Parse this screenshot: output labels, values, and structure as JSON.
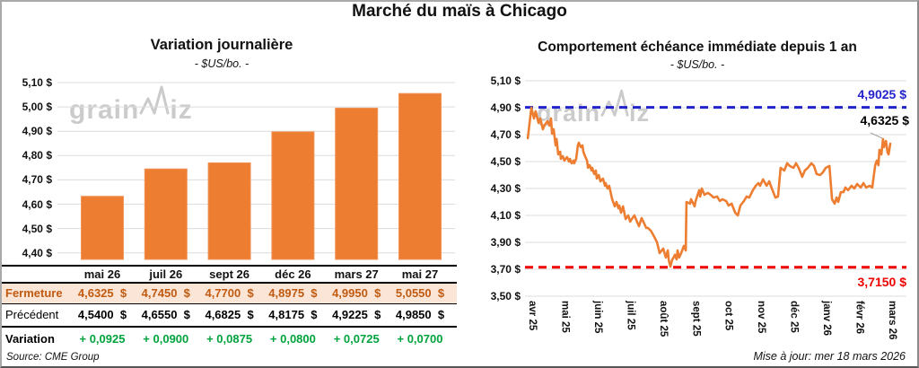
{
  "page": {
    "title": "Marché du maïs à Chicago"
  },
  "colors": {
    "orange": "#ED7D31",
    "orange_edge": "#F0945A",
    "blue_dash": "#2323CB",
    "red_dash": "#EE0000",
    "green": "#00A33C",
    "fermeture_text": "#C05A11",
    "fermeture_bg": "#FBE5D6",
    "grid": "#DCDCDC",
    "watermark": "#cbcbcb",
    "leader": "#a6a6a6"
  },
  "watermark": {
    "part1": "grain",
    "part2": "iz"
  },
  "left_chart": {
    "title": "Variation journalière",
    "subtitle": "- $US/bo. -"
  },
  "right_chart": {
    "title": "Comportement échéance immédiate depuis 1 an",
    "subtitle": "- $US/bo. -"
  },
  "annotations": {
    "resistance": "4,9025 $",
    "last": "4,6325 $",
    "support": "3,7150 $"
  },
  "table": {
    "columns": [
      "mai 26",
      "juil 26",
      "sept 26",
      "déc 26",
      "mars 27",
      "mai 27"
    ],
    "rows": [
      {
        "key": "fermeture",
        "label": "Fermeture",
        "values": [
          "4,6325  $",
          "4,7450  $",
          "4,7700  $",
          "4,8975  $",
          "4,9950  $",
          "5,0550  $"
        ]
      },
      {
        "key": "precedent",
        "label": "Précédent",
        "values": [
          "4,5400  $",
          "4,6550  $",
          "4,6825  $",
          "4,8175  $",
          "4,9225  $",
          "4,9850  $"
        ]
      },
      {
        "key": "variation",
        "label": "Variation",
        "values": [
          "+ 0,0925",
          "+ 0,0900",
          "+ 0,0875",
          "+ 0,0800",
          "+ 0,0725",
          "+ 0,0700"
        ]
      }
    ]
  },
  "footer": {
    "source": "Source: CME Group",
    "updated": "Mise à jour: mer 18 mars 2026"
  },
  "chart_data": [
    {
      "type": "bar",
      "title": "Variation journalière",
      "subtitle": "- $US/bo. -",
      "unit": "$US/bo.",
      "categories": [
        "mai 26",
        "juil 26",
        "sept 26",
        "déc 26",
        "mars 27",
        "mai 27"
      ],
      "values": [
        4.6325,
        4.745,
        4.77,
        4.8975,
        4.995,
        5.055
      ],
      "xlabel": "",
      "ylabel": "$US/bo.",
      "ylim": [
        4.4,
        5.1
      ],
      "ytick_step": 0.1,
      "grid": true
    },
    {
      "type": "line",
      "title": "Comportement échéance immédiate depuis 1 an",
      "subtitle": "- $US/bo. -",
      "unit": "$US/bo.",
      "x_labels": [
        "avr 25",
        "mai 25",
        "juin 25",
        "juil 25",
        "août 25",
        "sept 25",
        "oct 25",
        "nov 25",
        "déc 25",
        "janv 26",
        "févr 26",
        "mars 26"
      ],
      "ylim": [
        3.5,
        5.1
      ],
      "ytick_step": 0.2,
      "grid": true,
      "hlines": [
        {
          "value": 4.9025,
          "style": "dashed",
          "color": "#2323CB",
          "label": "4,9025 $"
        },
        {
          "value": 3.715,
          "style": "dashed",
          "color": "#EE0000",
          "label": "3,7150 $"
        }
      ],
      "last_value": 4.6325,
      "series": [
        {
          "name": "échéance immédiate",
          "color": "#ED7D31",
          "points": [
            [
              -0.08,
              4.673
            ],
            [
              0.03,
              4.9
            ],
            [
              0.11,
              4.82
            ],
            [
              0.16,
              4.873
            ],
            [
              0.25,
              4.787
            ],
            [
              0.3,
              4.82
            ],
            [
              0.38,
              4.74
            ],
            [
              0.44,
              4.773
            ],
            [
              0.52,
              4.8
            ],
            [
              0.58,
              4.767
            ],
            [
              0.63,
              4.82
            ],
            [
              0.66,
              4.707
            ],
            [
              0.71,
              4.74
            ],
            [
              0.77,
              4.62
            ],
            [
              0.8,
              4.667
            ],
            [
              0.85,
              4.553
            ],
            [
              0.91,
              4.573
            ],
            [
              0.93,
              4.52
            ],
            [
              0.99,
              4.54
            ],
            [
              1.04,
              4.507
            ],
            [
              1.12,
              4.533
            ],
            [
              1.18,
              4.5
            ],
            [
              1.21,
              4.52
            ],
            [
              1.26,
              4.487
            ],
            [
              1.32,
              4.507
            ],
            [
              1.34,
              4.487
            ],
            [
              1.4,
              4.52
            ],
            [
              1.45,
              4.62
            ],
            [
              1.48,
              4.64
            ],
            [
              1.54,
              4.607
            ],
            [
              1.59,
              4.62
            ],
            [
              1.62,
              4.573
            ],
            [
              1.67,
              4.54
            ],
            [
              1.73,
              4.507
            ],
            [
              1.76,
              4.453
            ],
            [
              1.81,
              4.473
            ],
            [
              1.87,
              4.433
            ],
            [
              1.89,
              4.453
            ],
            [
              1.95,
              4.407
            ],
            [
              2.0,
              4.433
            ],
            [
              2.03,
              4.373
            ],
            [
              2.09,
              4.4
            ],
            [
              2.14,
              4.353
            ],
            [
              2.22,
              4.373
            ],
            [
              2.28,
              4.32
            ],
            [
              2.3,
              4.34
            ],
            [
              2.36,
              4.3
            ],
            [
              2.41,
              4.32
            ],
            [
              2.5,
              4.22
            ],
            [
              2.58,
              4.167
            ],
            [
              2.63,
              4.2
            ],
            [
              2.69,
              4.153
            ],
            [
              2.72,
              4.173
            ],
            [
              2.77,
              4.12
            ],
            [
              2.83,
              4.167
            ],
            [
              2.91,
              4.073
            ],
            [
              2.99,
              4.1
            ],
            [
              3.05,
              4.053
            ],
            [
              3.1,
              4.073
            ],
            [
              3.18,
              4.1
            ],
            [
              3.26,
              4.053
            ],
            [
              3.32,
              4.02
            ],
            [
              3.4,
              4.08
            ],
            [
              3.48,
              4.04
            ],
            [
              3.54,
              4.007
            ],
            [
              3.59,
              4.007
            ],
            [
              3.68,
              3.987
            ],
            [
              3.79,
              3.94
            ],
            [
              3.87,
              3.9
            ],
            [
              3.95,
              3.82
            ],
            [
              4.06,
              3.853
            ],
            [
              4.14,
              3.787
            ],
            [
              4.2,
              3.84
            ],
            [
              4.23,
              3.767
            ],
            [
              4.28,
              3.72
            ],
            [
              4.33,
              3.767
            ],
            [
              4.42,
              3.807
            ],
            [
              4.47,
              3.773
            ],
            [
              4.5,
              3.84
            ],
            [
              4.55,
              3.787
            ],
            [
              4.61,
              3.82
            ],
            [
              4.69,
              3.873
            ],
            [
              4.75,
              3.84
            ],
            [
              4.77,
              4.2
            ],
            [
              4.88,
              4.187
            ],
            [
              4.91,
              4.22
            ],
            [
              5.02,
              4.167
            ],
            [
              5.05,
              4.207
            ],
            [
              5.16,
              4.287
            ],
            [
              5.19,
              4.24
            ],
            [
              5.24,
              4.3
            ],
            [
              5.32,
              4.253
            ],
            [
              5.43,
              4.267
            ],
            [
              5.51,
              4.253
            ],
            [
              5.6,
              4.233
            ],
            [
              5.71,
              4.24
            ],
            [
              5.79,
              4.207
            ],
            [
              5.87,
              4.22
            ],
            [
              5.98,
              4.207
            ],
            [
              6.06,
              4.173
            ],
            [
              6.15,
              4.187
            ],
            [
              6.26,
              4.12
            ],
            [
              6.34,
              4.1
            ],
            [
              6.42,
              4.173
            ],
            [
              6.53,
              4.207
            ],
            [
              6.61,
              4.24
            ],
            [
              6.69,
              4.233
            ],
            [
              6.8,
              4.287
            ],
            [
              6.89,
              4.32
            ],
            [
              6.97,
              4.34
            ],
            [
              7.02,
              4.32
            ],
            [
              7.11,
              4.367
            ],
            [
              7.22,
              4.32
            ],
            [
              7.3,
              4.353
            ],
            [
              7.38,
              4.3
            ],
            [
              7.49,
              4.233
            ],
            [
              7.57,
              4.24
            ],
            [
              7.65,
              4.453
            ],
            [
              7.76,
              4.433
            ],
            [
              7.85,
              4.487
            ],
            [
              7.93,
              4.467
            ],
            [
              8.04,
              4.453
            ],
            [
              8.12,
              4.487
            ],
            [
              8.2,
              4.453
            ],
            [
              8.31,
              4.387
            ],
            [
              8.39,
              4.433
            ],
            [
              8.48,
              4.453
            ],
            [
              8.59,
              4.487
            ],
            [
              8.67,
              4.467
            ],
            [
              8.75,
              4.407
            ],
            [
              8.86,
              4.4
            ],
            [
              8.94,
              4.42
            ],
            [
              9.03,
              4.453
            ],
            [
              9.14,
              4.467
            ],
            [
              9.22,
              4.22
            ],
            [
              9.3,
              4.187
            ],
            [
              9.36,
              4.233
            ],
            [
              9.41,
              4.2
            ],
            [
              9.49,
              4.273
            ],
            [
              9.57,
              4.273
            ],
            [
              9.63,
              4.307
            ],
            [
              9.71,
              4.287
            ],
            [
              9.82,
              4.32
            ],
            [
              9.9,
              4.3
            ],
            [
              9.99,
              4.333
            ],
            [
              10.1,
              4.307
            ],
            [
              10.18,
              4.34
            ],
            [
              10.26,
              4.307
            ],
            [
              10.37,
              4.32
            ],
            [
              10.45,
              4.307
            ],
            [
              10.54,
              4.473
            ],
            [
              10.59,
              4.507
            ],
            [
              10.64,
              4.473
            ],
            [
              10.67,
              4.587
            ],
            [
              10.73,
              4.553
            ],
            [
              10.78,
              4.667
            ],
            [
              10.81,
              4.607
            ],
            [
              10.87,
              4.653
            ],
            [
              10.92,
              4.567
            ],
            [
              10.95,
              4.553
            ],
            [
              11.0,
              4.6325
            ]
          ]
        }
      ]
    }
  ]
}
